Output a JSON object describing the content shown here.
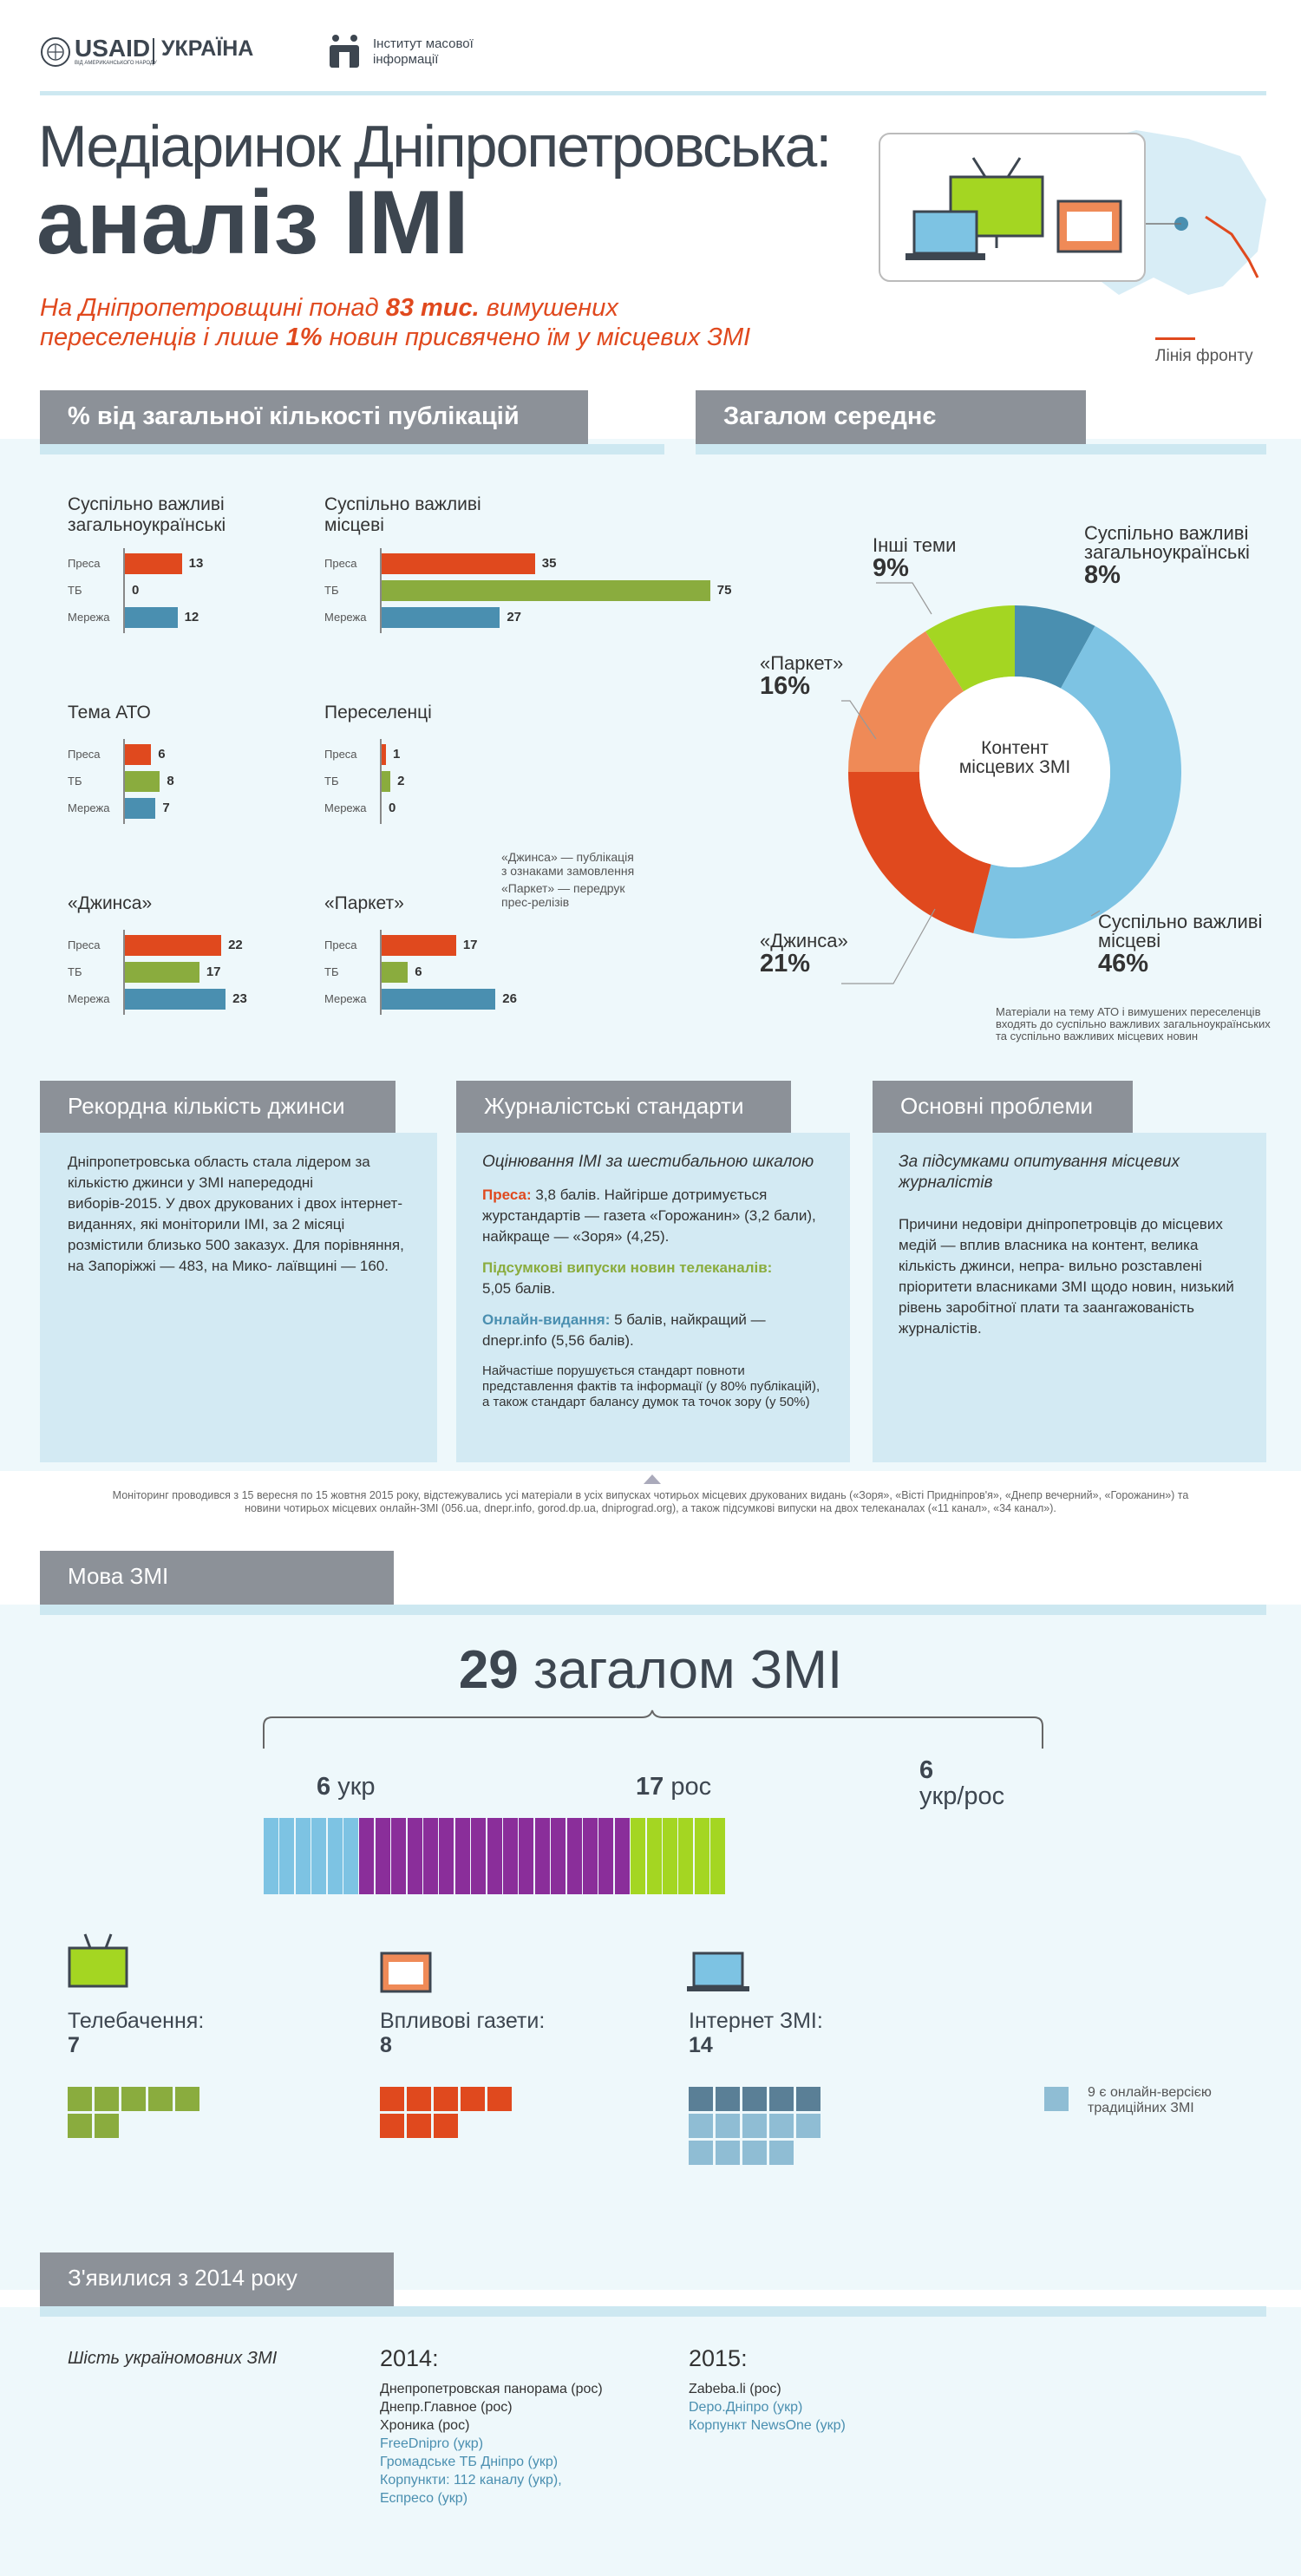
{
  "header": {
    "usaid": "USAID",
    "usaid_sub": "ВІД АМЕРИКАНСЬКОГО НАРОДУ",
    "country": "УКРАЇНА",
    "imi_line1": "Інститут масової",
    "imi_line2": "інформації"
  },
  "title": {
    "line1": "Медіаринок Дніпропетровська:",
    "line2": "аналіз ІМІ"
  },
  "subtitle": {
    "p1": "На Дніпропетровщині понад ",
    "p2": "83 тис.",
    "p3": " вимушених",
    "p4": "переселенців і лише ",
    "p5": "1%",
    "p6": " новин присвячено їм у місцевих ЗМІ"
  },
  "map_legend": "Лінія фронту",
  "sections": {
    "publications": "% від загальної кількості публікацій",
    "average": "Загалом середнє",
    "record": "Рекордна кількість джинси",
    "standards": "Журналістські стандарти",
    "problems": "Основні проблеми",
    "language": "Мова ЗМІ",
    "since2014": "З'явилися з 2014 року"
  },
  "chart_data": [
    {
      "type": "bar",
      "title": "Суспільно важливі загальноукраїнські",
      "categories": [
        "Преса",
        "ТБ",
        "Мережа"
      ],
      "values": [
        13,
        0,
        12
      ]
    },
    {
      "type": "bar",
      "title": "Суспільно важливі місцеві",
      "categories": [
        "Преса",
        "ТБ",
        "Мережа"
      ],
      "values": [
        35,
        75,
        27
      ]
    },
    {
      "type": "bar",
      "title": "Тема АТО",
      "categories": [
        "Преса",
        "ТБ",
        "Мережа"
      ],
      "values": [
        6,
        8,
        7
      ]
    },
    {
      "type": "bar",
      "title": "Переселенці",
      "categories": [
        "Преса",
        "ТБ",
        "Мережа"
      ],
      "values": [
        1,
        2,
        0
      ]
    },
    {
      "type": "bar",
      "title": "«Джинса»",
      "categories": [
        "Преса",
        "ТБ",
        "Мережа"
      ],
      "values": [
        22,
        17,
        23
      ]
    },
    {
      "type": "bar",
      "title": "«Паркет»",
      "categories": [
        "Преса",
        "ТБ",
        "Мережа"
      ],
      "values": [
        17,
        6,
        26
      ]
    },
    {
      "type": "pie",
      "title": "Контент місцевих ЗМІ",
      "slices": [
        {
          "label": "Суспільно важливі загальноукраїнські",
          "value": 8,
          "color": "#4a8fb0"
        },
        {
          "label": "Суспільно важливі місцеві",
          "value": 46,
          "color": "#7dc3e3"
        },
        {
          "label": "«Джинса»",
          "value": 21,
          "color": "#e0491e"
        },
        {
          "label": "«Паркет»",
          "value": 16,
          "color": "#ef8a57"
        },
        {
          "label": "Інші теми",
          "value": 9,
          "color": "#a4d622"
        }
      ]
    }
  ],
  "bar_colors": [
    "#e0491e",
    "#8aac3e",
    "#4a8fb0"
  ],
  "notes": {
    "jeansa": "«Джинса» — публікація з ознаками замовлення",
    "parket": "«Паркет» — передрук прес-релізів",
    "pie": "Матеріали на тему АТО і вимушених переселенців входять до суспільно важливих загальноукраїнських та суспільно важливих місцевих новин"
  },
  "pie_labels": [
    {
      "name": "Суспільно важливі загальноукраїнські",
      "pct": "8%"
    },
    {
      "name": "Суспільно важливі місцеві",
      "pct": "46%"
    },
    {
      "name": "«Джинса»",
      "pct": "21%"
    },
    {
      "name": "«Паркет»",
      "pct": "16%"
    },
    {
      "name": "Інші теми",
      "pct": "9%"
    }
  ],
  "record_text": "Дніпропетровська область стала лідером за кількістю джинси у ЗМІ напередодні виборів-2015.  У двох друкованих і двох інтернет-виданнях, які моніторили ІМІ, за 2 місяці розмістили близько 500 заказух. Для порівняння, на Запоріжжі — 483, на Мико- лаївщині — 160.",
  "standards": {
    "heading": "Оцінювання ІМІ за шестибальною шкалою",
    "press_label": "Преса:",
    "press_text": " 3,8 балів. Найгірше дотримується журстандартів — газета «Горожанин» (3,2 бали), найкраще — «Зоря» (4,25).",
    "tv_label": "Підсумкові випуски новин телеканалів:",
    "tv_text": "5,05 балів.",
    "online_label": "Онлайн-видання:",
    "online_text": " 5 балів, найкращий — dnepr.info (5,56 балів).",
    "footer": "Найчастіше порушується стандарт повноти представлення фактів та інформації (у 80% публікацій), а також стандарт балансу думок та точок зору (у 50%)"
  },
  "problems": {
    "heading": "За підсумками опитування місцевих журналістів",
    "text": "Причини недовіри дніпропетровців до місцевих медій — вплив власника на контент, велика кількість джинси, непра- вильно розставлені пріоритети власниками ЗМІ щодо новин, низький рівень заробітної плати та заангажованість журналістів."
  },
  "monitoring_note": "Моніторинг проводився з 15 вересня по 15 жовтня 2015 року, відстежувались усі матеріали в усіх випусках чотирьох місцевих друкованих видань («Зоря», «Вісті Придніпров'я», «Днепр вечерний», «Горожанин») та новини чотирьох місцевих онлайн-ЗМІ (056.ua, dnepr.info, gorod.dp.ua, dniprograd.org), а також підсумкові випуски на двох телеканалах («11 канал», «34 канал»).",
  "language": {
    "total_num": "29",
    "total_text": " загалом ЗМІ",
    "ukr_num": "6",
    "ukr_text": " укр",
    "ros_num": "17",
    "ros_text": " рос",
    "mix_num": "6",
    "mix_text": "укр/рос",
    "counts": [
      6,
      17,
      6
    ],
    "colors": [
      "#7dc3e3",
      "#8a2e9a",
      "#a4d622"
    ]
  },
  "media_types": {
    "tv_label": "Телебачення:",
    "tv_count": "7",
    "tv_value": 7,
    "press_label": "Впливові газети:",
    "press_count": "8",
    "press_value": 8,
    "internet_label": "Інтернет ЗМІ:",
    "internet_count": "14",
    "internet_value": 14,
    "internet_online_versions": 9,
    "legend": "9 є онлайн-версією традиційних ЗМІ"
  },
  "since2014": {
    "six_ukr": "Шість україномовних ЗМІ",
    "y2014": "2014:",
    "y2015": "2015:",
    "list2014": [
      {
        "name": "Днепропетровская панорама (рос)",
        "ukr": false
      },
      {
        "name": "Днепр.Главное (рос)",
        "ukr": false
      },
      {
        "name": "Хроника (рос)",
        "ukr": false
      },
      {
        "name": "FreeDnipro (укр)",
        "ukr": true
      },
      {
        "name": "Громадське ТБ Дніпро (укр)",
        "ukr": true
      },
      {
        "name": "Корпункти: 112 каналу (укр),",
        "ukr": true
      },
      {
        "name": "Еспресо (укр)",
        "ukr": true
      }
    ],
    "list2015": [
      {
        "name": "Zabeba.li (рос)",
        "ukr": false
      },
      {
        "name": "Depo.Дніпро (укр)",
        "ukr": true
      },
      {
        "name": "Корпункт NewsOne (укр)",
        "ukr": true
      }
    ]
  }
}
